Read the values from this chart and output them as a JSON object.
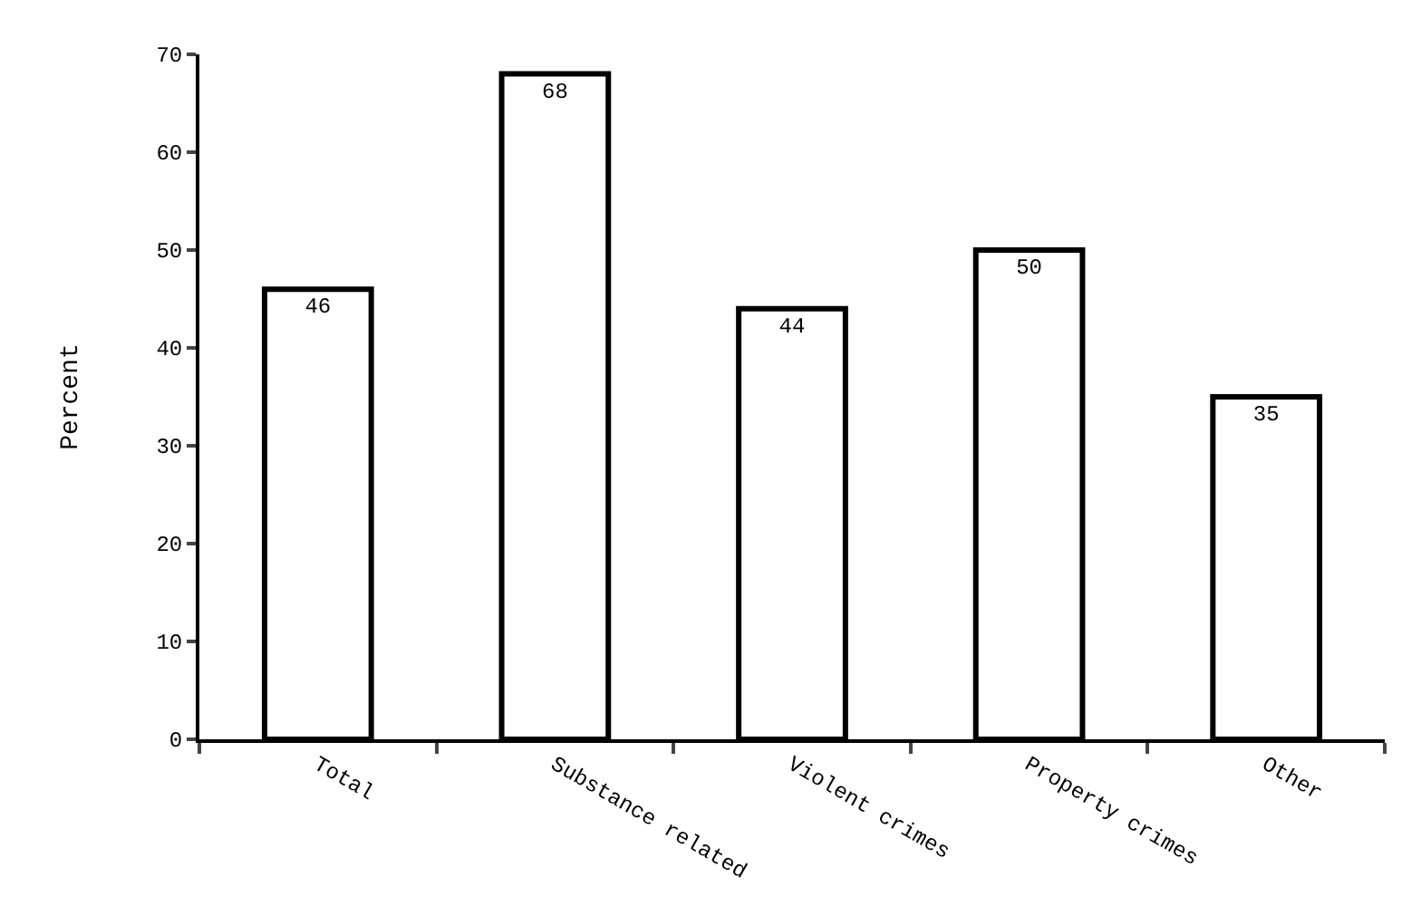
{
  "chart_data": {
    "type": "bar",
    "ylabel": "Percent",
    "categories": [
      "Total",
      "Substance related",
      "Violent crimes",
      "Property crimes",
      "Other"
    ],
    "values": [
      46,
      68,
      44,
      50,
      35
    ],
    "color": "#ffffff",
    "ylim": [
      0,
      70
    ],
    "yticks": [
      0,
      10,
      20,
      30,
      40,
      50,
      60,
      70
    ],
    "grid": false,
    "legend": false,
    "data_labels": true
  }
}
